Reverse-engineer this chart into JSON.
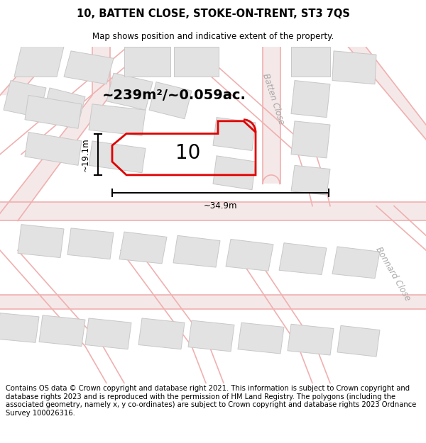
{
  "title": "10, BATTEN CLOSE, STOKE-ON-TRENT, ST3 7QS",
  "subtitle": "Map shows position and indicative extent of the property.",
  "area_label": "~239m²/~0.059ac.",
  "property_number": "10",
  "dim_width": "~34.9m",
  "dim_height": "~19.1m",
  "footer": "Contains OS data © Crown copyright and database right 2021. This information is subject to Crown copyright and database rights 2023 and is reproduced with the permission of HM Land Registry. The polygons (including the associated geometry, namely x, y co-ordinates) are subject to Crown copyright and database rights 2023 Ordnance Survey 100026316.",
  "map_bg": "#f7f7f7",
  "road_line_color": "#f0b0b0",
  "road_fill_color": "#f5e8e8",
  "building_fill": "#e2e2e2",
  "building_edge": "#c8c8c8",
  "property_color": "#e00000",
  "dim_color": "#000000",
  "title_fontsize": 10.5,
  "subtitle_fontsize": 8.5,
  "footer_fontsize": 7.2,
  "street_label_color": "#aaaaaa",
  "street_label_size": 8.5
}
